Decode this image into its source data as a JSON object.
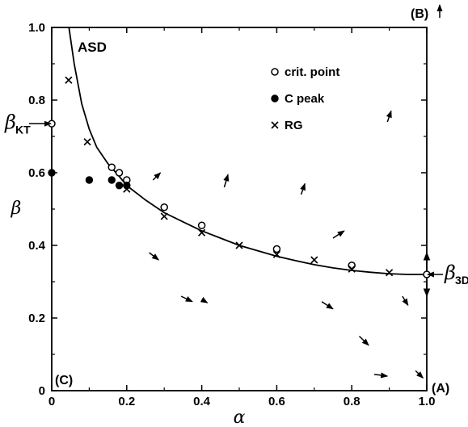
{
  "chart_data": {
    "type": "scatter",
    "title": "",
    "xlabel": "α",
    "ylabel": "β",
    "xlim": [
      0,
      1.0
    ],
    "ylim": [
      0,
      1.0
    ],
    "grid": false,
    "legend_position": "top-right",
    "x_ticks": [
      "0",
      "0.2",
      "0.4",
      "0.6",
      "0.8",
      "1.0"
    ],
    "y_ticks": [
      "0",
      "0.2",
      "0.4",
      "0.6",
      "0.8",
      "1.0"
    ],
    "curve_label": "ASD",
    "corner_labels": {
      "top_right": "(B)",
      "bottom_left": "(C)",
      "bottom_right": "(A)"
    },
    "side_labels": {
      "beta_kt": {
        "main": "β",
        "sub": "KT",
        "y": 0.735
      },
      "beta_3d": {
        "main": "β",
        "sub": "3D",
        "y": 0.32
      }
    },
    "curve": {
      "name": "ASD",
      "points": [
        [
          0.046,
          1.0
        ],
        [
          0.06,
          0.9
        ],
        [
          0.08,
          0.79
        ],
        [
          0.1,
          0.72
        ],
        [
          0.12,
          0.67
        ],
        [
          0.15,
          0.625
        ],
        [
          0.18,
          0.59
        ],
        [
          0.2,
          0.565
        ],
        [
          0.25,
          0.525
        ],
        [
          0.3,
          0.49
        ],
        [
          0.35,
          0.465
        ],
        [
          0.4,
          0.44
        ],
        [
          0.45,
          0.42
        ],
        [
          0.5,
          0.4
        ],
        [
          0.55,
          0.385
        ],
        [
          0.6,
          0.37
        ],
        [
          0.65,
          0.358
        ],
        [
          0.7,
          0.347
        ],
        [
          0.75,
          0.338
        ],
        [
          0.8,
          0.331
        ],
        [
          0.85,
          0.326
        ],
        [
          0.9,
          0.322
        ],
        [
          0.95,
          0.32
        ],
        [
          1.0,
          0.32
        ]
      ]
    },
    "series": [
      {
        "name": "crit. point",
        "marker": "open-circle",
        "points": [
          [
            0.0,
            0.735
          ],
          [
            0.16,
            0.615
          ],
          [
            0.18,
            0.6
          ],
          [
            0.2,
            0.58
          ],
          [
            0.3,
            0.505
          ],
          [
            0.4,
            0.455
          ],
          [
            0.6,
            0.39
          ],
          [
            0.8,
            0.345
          ],
          [
            1.0,
            0.32
          ]
        ]
      },
      {
        "name": "C peak",
        "marker": "filled-circle",
        "points": [
          [
            0.0,
            0.6
          ],
          [
            0.1,
            0.58
          ],
          [
            0.16,
            0.58
          ],
          [
            0.18,
            0.565
          ],
          [
            0.2,
            0.565
          ]
        ]
      },
      {
        "name": "RG",
        "marker": "x",
        "points": [
          [
            0.045,
            0.855
          ],
          [
            0.095,
            0.685
          ],
          [
            0.2,
            0.555
          ],
          [
            0.3,
            0.48
          ],
          [
            0.4,
            0.435
          ],
          [
            0.5,
            0.4
          ],
          [
            0.6,
            0.375
          ],
          [
            0.7,
            0.36
          ],
          [
            0.8,
            0.335
          ],
          [
            0.9,
            0.325
          ]
        ]
      }
    ],
    "flow_arrows": [
      [
        0.27,
        0.58,
        0.29,
        0.6
      ],
      [
        0.46,
        0.56,
        0.47,
        0.595
      ],
      [
        0.665,
        0.54,
        0.675,
        0.57
      ],
      [
        0.895,
        0.74,
        0.905,
        0.77
      ],
      [
        0.26,
        0.38,
        0.285,
        0.36
      ],
      [
        0.75,
        0.42,
        0.78,
        0.44
      ],
      [
        0.345,
        0.26,
        0.375,
        0.245
      ],
      [
        0.41,
        0.245,
        0.415,
        0.242
      ],
      [
        0.72,
        0.245,
        0.75,
        0.225
      ],
      [
        0.935,
        0.26,
        0.95,
        0.235
      ],
      [
        0.82,
        0.15,
        0.845,
        0.125
      ],
      [
        0.86,
        0.045,
        0.895,
        0.04
      ],
      [
        0.97,
        0.055,
        0.99,
        0.035
      ]
    ],
    "axis_arrows": [
      [
        1.0,
        0.335,
        1.0,
        0.38
      ],
      [
        1.0,
        0.305,
        1.0,
        0.26
      ]
    ]
  }
}
